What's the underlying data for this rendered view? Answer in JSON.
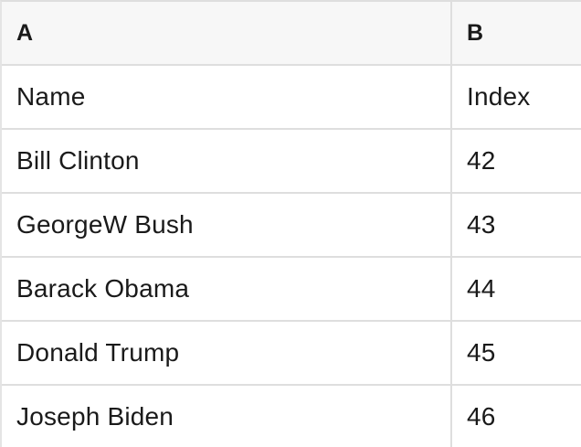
{
  "table": {
    "column_headers": [
      "A",
      "B"
    ],
    "rows": [
      {
        "a": "Name",
        "b": "Index"
      },
      {
        "a": "Bill Clinton",
        "b": "42"
      },
      {
        "a": "GeorgeW Bush",
        "b": "43"
      },
      {
        "a": "Barack Obama",
        "b": "44"
      },
      {
        "a": "Donald Trump",
        "b": "45"
      },
      {
        "a": "Joseph Biden",
        "b": "46"
      }
    ]
  },
  "colors": {
    "header_bg": "#f7f7f7",
    "row_bg": "#ffffff",
    "border": "#dedede",
    "border_left": "#e4e4e4",
    "text": "#1a1a1a"
  }
}
